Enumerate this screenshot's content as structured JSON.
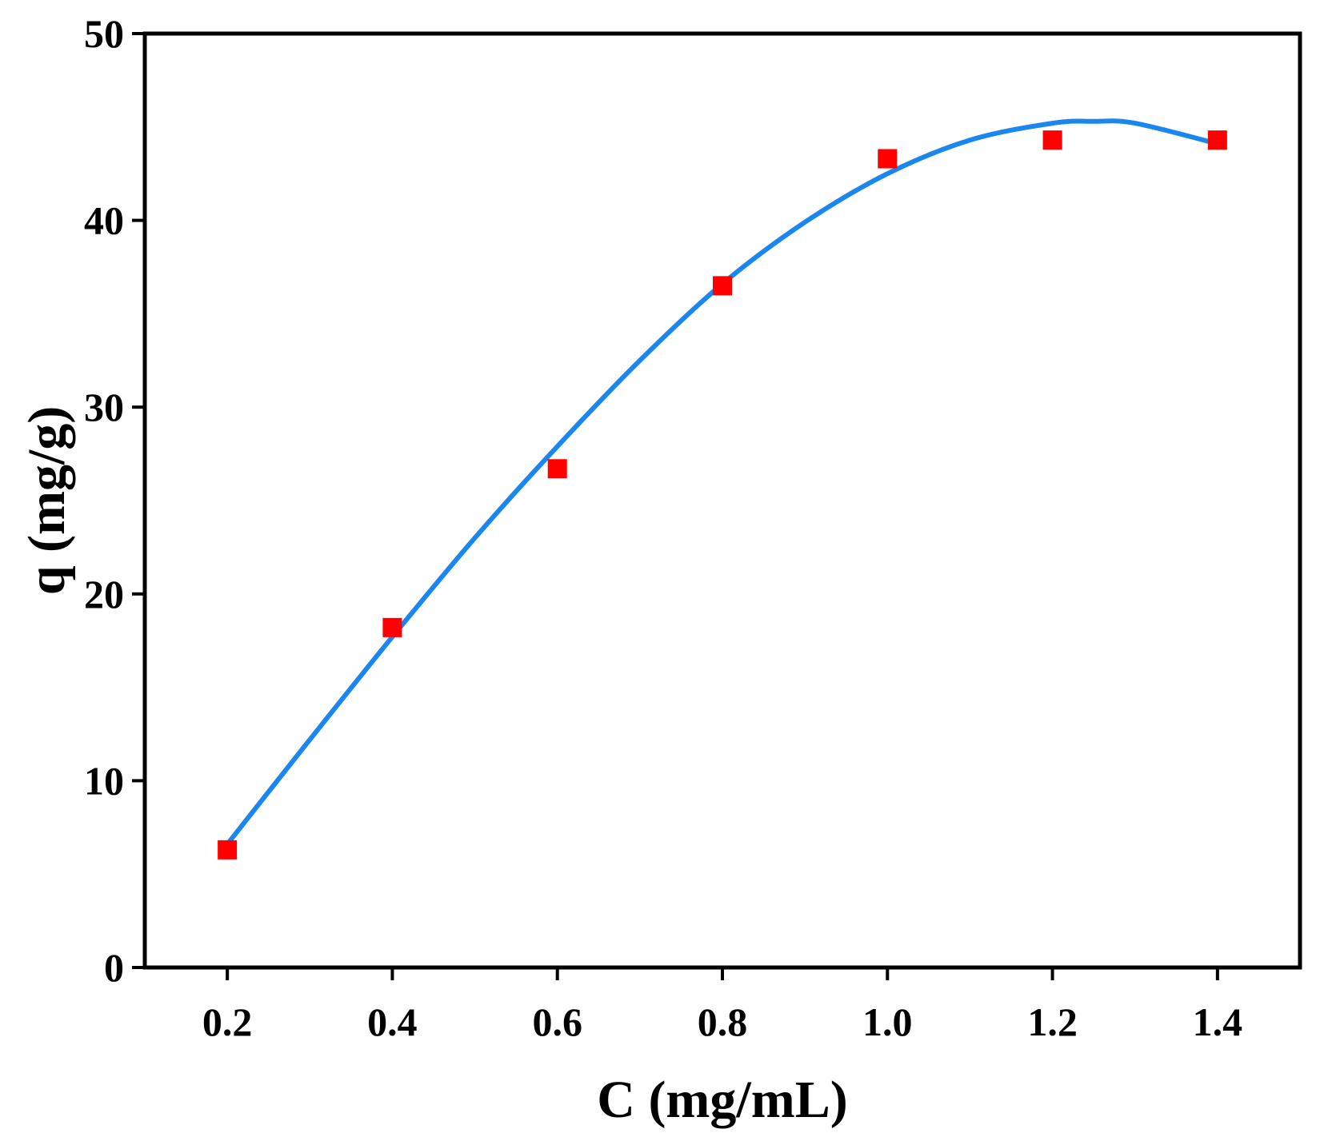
{
  "chart_data": {
    "type": "scatter",
    "title": "",
    "xlabel": "C (mg/mL)",
    "ylabel": "q (mg/g)",
    "xlim": [
      0.1,
      1.5
    ],
    "ylim": [
      0,
      50
    ],
    "xticks": [
      "0.2",
      "0.4",
      "0.6",
      "0.8",
      "1.0",
      "1.2",
      "1.4"
    ],
    "yticks": [
      "0",
      "10",
      "20",
      "30",
      "40",
      "50"
    ],
    "grid": false,
    "legend": "none",
    "series": [
      {
        "kind": "points",
        "marker": "square",
        "color": "#ff0000",
        "x": [
          0.2,
          0.4,
          0.6,
          0.8,
          1.0,
          1.2,
          1.4
        ],
        "y": [
          6.3,
          18.2,
          26.7,
          36.5,
          43.3,
          44.3,
          44.3
        ]
      },
      {
        "kind": "fit-curve",
        "color": "#1a86f0",
        "x": [
          0.2,
          0.3,
          0.4,
          0.5,
          0.6,
          0.7,
          0.8,
          0.9,
          1.0,
          1.1,
          1.2,
          1.25,
          1.3,
          1.4
        ],
        "y": [
          6.6,
          12.2,
          17.7,
          23.0,
          27.9,
          32.5,
          36.6,
          39.9,
          42.5,
          44.3,
          45.2,
          45.3,
          45.2,
          44.1
        ]
      }
    ]
  }
}
